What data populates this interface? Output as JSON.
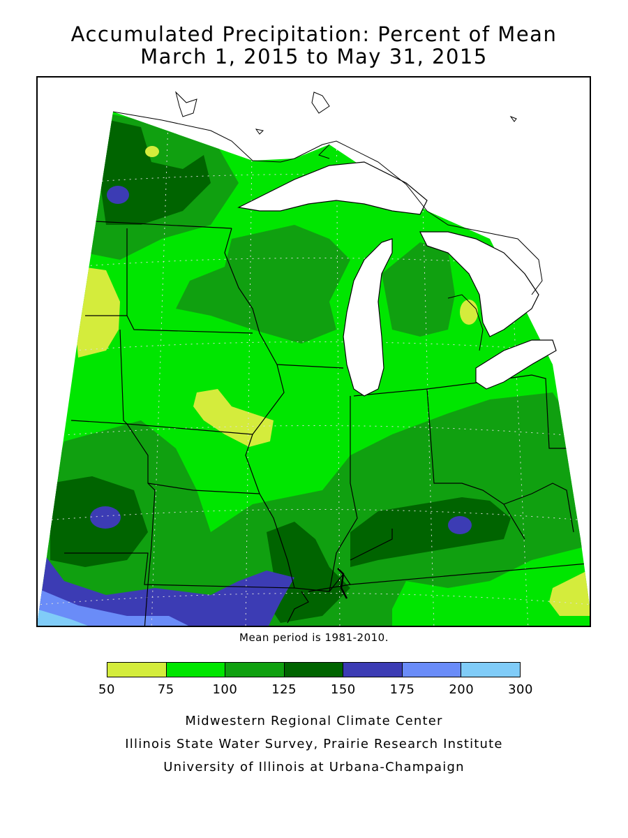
{
  "title": {
    "line1": "Accumulated Precipitation: Percent of Mean",
    "line2": "March 1, 2015 to May 31, 2015"
  },
  "note": "Mean period is 1981-2010.",
  "legend": {
    "bins": [
      {
        "from": 50,
        "to": 75,
        "color": "#d4ec3c"
      },
      {
        "from": 75,
        "to": 100,
        "color": "#00e600"
      },
      {
        "from": 100,
        "to": 125,
        "color": "#10a010"
      },
      {
        "from": 125,
        "to": 150,
        "color": "#006400"
      },
      {
        "from": 150,
        "to": 175,
        "color": "#3c3cb4"
      },
      {
        "from": 175,
        "to": 200,
        "color": "#6a8cf8"
      },
      {
        "from": 200,
        "to": 300,
        "color": "#80ccf8"
      }
    ],
    "ticks": [
      "50",
      "75",
      "100",
      "125",
      "150",
      "175",
      "200",
      "300"
    ]
  },
  "credits": {
    "line1": "Midwestern Regional Climate Center",
    "line2": "Illinois State Water Survey, Prairie Research Institute",
    "line3": "University of Illinois at Urbana-Champaign"
  },
  "map": {
    "base_category": "75-100",
    "features": [
      "Lake Superior",
      "Lake Michigan",
      "Lake Huron",
      "Lake Erie",
      "state boundaries"
    ]
  }
}
